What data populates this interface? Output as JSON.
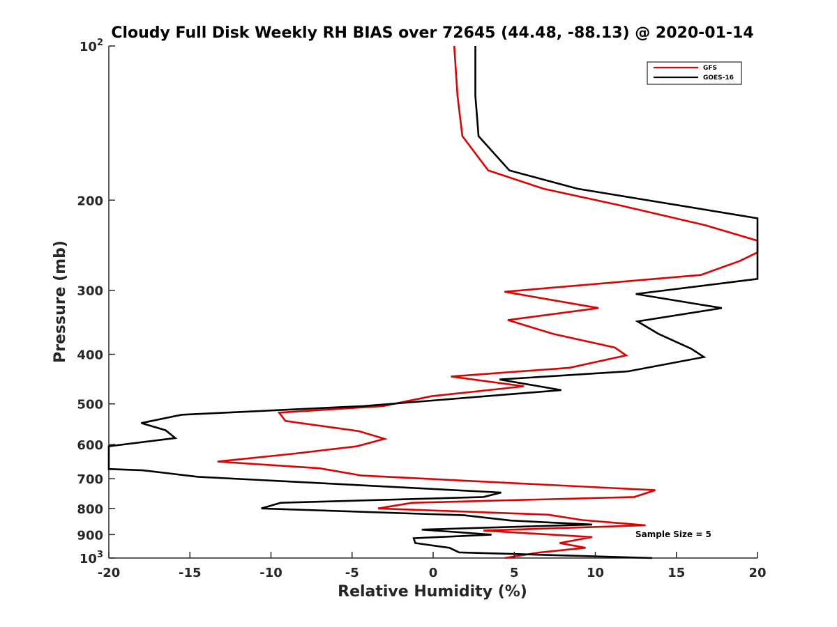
{
  "chart_data": {
    "type": "line",
    "title": "Cloudy Full Disk Weekly RH BIAS over 72645 (44.48, -88.13) @ 2020-01-14",
    "xlabel": "Relative Humidity (%)",
    "ylabel": "Pressure (mb)",
    "xlim": [
      -20,
      20
    ],
    "ylim": [
      100,
      1000
    ],
    "y_scale": "log",
    "y_reversed": true,
    "grid": false,
    "legend_position": "top-right",
    "x_ticks": [
      "-20",
      "-15",
      "-10",
      "-5",
      "0",
      "5",
      "10",
      "15",
      "20"
    ],
    "y_ticks": [
      {
        "value": 100,
        "base": "10",
        "exp": "2"
      },
      {
        "value": 200,
        "label": "200"
      },
      {
        "value": 300,
        "label": "300"
      },
      {
        "value": 400,
        "label": "400"
      },
      {
        "value": 500,
        "label": "500"
      },
      {
        "value": 600,
        "label": "600"
      },
      {
        "value": 700,
        "label": "700"
      },
      {
        "value": 800,
        "label": "800"
      },
      {
        "value": 900,
        "label": "900"
      },
      {
        "value": 1000,
        "base": "10",
        "exp": "3"
      }
    ],
    "annotation": "Sample Size = 5",
    "series": [
      {
        "name": "GFS",
        "color": "#e00000",
        "points": [
          [
            1.3,
            100
          ],
          [
            1.5,
            125
          ],
          [
            1.8,
            150
          ],
          [
            3.4,
            175
          ],
          [
            6.8,
            190
          ],
          [
            11.3,
            204
          ],
          [
            16.8,
            224
          ],
          [
            20.0,
            240
          ],
          [
            20.0,
            250
          ],
          [
            20.0,
            253
          ],
          [
            18.9,
            263
          ],
          [
            16.5,
            280
          ],
          [
            4.4,
            302
          ],
          [
            10.2,
            325
          ],
          [
            4.6,
            343
          ],
          [
            7.4,
            365
          ],
          [
            11.2,
            388
          ],
          [
            11.9,
            402
          ],
          [
            8.4,
            425
          ],
          [
            1.1,
            442
          ],
          [
            5.6,
            462
          ],
          [
            -0.1,
            483
          ],
          [
            -3.1,
            505
          ],
          [
            -9.5,
            520
          ],
          [
            -9.1,
            540
          ],
          [
            -4.6,
            565
          ],
          [
            -3.0,
            585
          ],
          [
            -4.7,
            605
          ],
          [
            -8.7,
            626
          ],
          [
            -13.3,
            648
          ],
          [
            -7.0,
            668
          ],
          [
            -4.4,
            690
          ],
          [
            13.7,
            737
          ],
          [
            12.4,
            760
          ],
          [
            -1.3,
            780
          ],
          [
            -3.4,
            800
          ],
          [
            7.1,
            823
          ],
          [
            9.2,
            843
          ],
          [
            13.1,
            863
          ],
          [
            3.1,
            884
          ],
          [
            9.8,
            910
          ],
          [
            7.8,
            935
          ],
          [
            9.4,
            955
          ],
          [
            6.6,
            975
          ],
          [
            4.4,
            1000
          ]
        ]
      },
      {
        "name": "GOES-16",
        "color": "#000000",
        "points": [
          [
            2.6,
            100
          ],
          [
            2.6,
            125
          ],
          [
            2.8,
            150
          ],
          [
            4.7,
            175
          ],
          [
            8.9,
            190
          ],
          [
            20.0,
            217
          ],
          [
            20.0,
            280
          ],
          [
            20.0,
            285
          ],
          [
            12.5,
            305
          ],
          [
            17.8,
            325
          ],
          [
            12.6,
            345
          ],
          [
            13.9,
            365
          ],
          [
            15.9,
            390
          ],
          [
            16.7,
            405
          ],
          [
            12.0,
            432
          ],
          [
            4.1,
            448
          ],
          [
            7.9,
            470
          ],
          [
            -4.3,
            505
          ],
          [
            -15.5,
            525
          ],
          [
            -18.0,
            545
          ],
          [
            -16.5,
            563
          ],
          [
            -15.9,
            583
          ],
          [
            -20.0,
            605
          ],
          [
            -20.0,
            670
          ],
          [
            -17.9,
            674
          ],
          [
            -14.5,
            694
          ],
          [
            4.2,
            745
          ],
          [
            3.1,
            760
          ],
          [
            -9.4,
            780
          ],
          [
            -10.6,
            800
          ],
          [
            1.9,
            825
          ],
          [
            4.8,
            845
          ],
          [
            9.8,
            860
          ],
          [
            -0.7,
            880
          ],
          [
            3.6,
            900
          ],
          [
            -1.2,
            915
          ],
          [
            -1.1,
            935
          ],
          [
            1.0,
            955
          ],
          [
            1.6,
            975
          ],
          [
            13.5,
            1000
          ]
        ]
      }
    ]
  }
}
